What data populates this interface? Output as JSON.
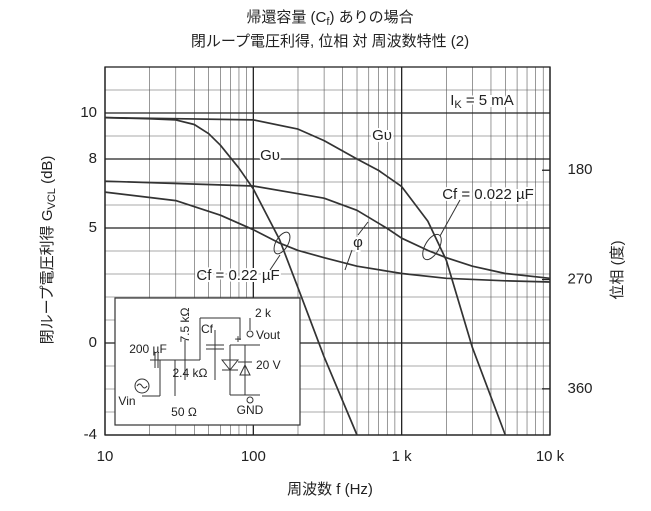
{
  "chart_data": {
    "type": "line",
    "title": {
      "text": "帰還容量 (C",
      "sub": "f",
      "rest": ") ありの場合"
    },
    "subtitle": "閉ループ電圧利得, 位相 対 周波数特性 (2)",
    "x_label": "周波数  f (Hz)",
    "y_label": {
      "text": "閉ループ電圧利得  G",
      "sub": "VCL",
      "rest": "  (dB)"
    },
    "y2_label": "位相 (度)",
    "log_x": true,
    "grid": true,
    "color": "#333333",
    "xlim": [
      10,
      10000
    ],
    "xticks": [
      10,
      100,
      {
        "value": 1000,
        "label": "1 k"
      },
      {
        "value": 10000,
        "label": "10 k"
      }
    ],
    "ylim": [
      -4,
      12
    ],
    "yticks": [
      -4,
      0,
      5,
      8,
      10
    ],
    "y2lim": [
      398,
      95
    ],
    "y2ticks": [
      180,
      270,
      360
    ],
    "series": [
      {
        "x": [
          10,
          20,
          30,
          40,
          50,
          60,
          80,
          100,
          150,
          200,
          300,
          500
        ],
        "values": [
          9.8,
          9.75,
          9.7,
          9.5,
          9.1,
          8.6,
          7.6,
          6.7,
          4.5,
          2.4,
          -0.6,
          -4
        ]
      },
      {
        "x": [
          10,
          100,
          200,
          300,
          500,
          700,
          1000,
          1500,
          2000,
          3000,
          5000
        ],
        "values": [
          9.8,
          9.7,
          9.3,
          8.8,
          8.0,
          7.5,
          6.8,
          5.3,
          3.6,
          -0.2,
          -4
        ]
      },
      {
        "axis": "y2",
        "x": [
          10,
          30,
          60,
          100,
          150,
          200,
          300,
          500,
          1000,
          2000,
          5000,
          10000
        ],
        "values": [
          198,
          205,
          217,
          229,
          240,
          246,
          252,
          259,
          265,
          269,
          271,
          272
        ]
      },
      {
        "axis": "y2",
        "x": [
          10,
          100,
          300,
          500,
          800,
          1000,
          1500,
          2000,
          3000,
          5000,
          10000
        ],
        "values": [
          189,
          193,
          203,
          213,
          228,
          236,
          246,
          252,
          259,
          265,
          269
        ]
      }
    ],
    "annotations": [
      {
        "text": "Gυ"
      },
      {
        "text": "Gυ"
      },
      {
        "text": "I",
        "sub": "K",
        "rest": " = 5 mA"
      },
      {
        "text": "Cf = 0.022 µF"
      },
      {
        "text": "Cf = 0.22 µF"
      },
      {
        "text": "φ"
      }
    ],
    "inset_labels": [
      "2 k",
      "Cf",
      "Vout",
      "7.5 kΩ",
      "200 µF",
      "2.4 kΩ",
      "20 V",
      "Vin",
      "50 Ω",
      "GND",
      "+"
    ]
  }
}
